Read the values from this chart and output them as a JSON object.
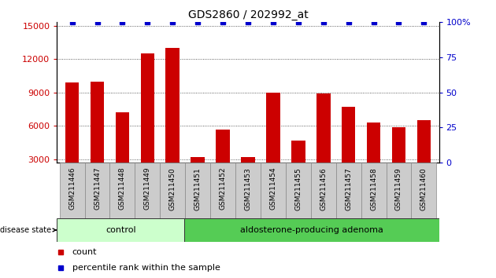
{
  "title": "GDS2860 / 202992_at",
  "categories": [
    "GSM211446",
    "GSM211447",
    "GSM211448",
    "GSM211449",
    "GSM211450",
    "GSM211451",
    "GSM211452",
    "GSM211453",
    "GSM211454",
    "GSM211455",
    "GSM211456",
    "GSM211457",
    "GSM211458",
    "GSM211459",
    "GSM211460"
  ],
  "counts": [
    9900,
    10000,
    7200,
    12500,
    13000,
    3200,
    5700,
    3200,
    9000,
    4700,
    8900,
    7700,
    6300,
    5900,
    6500
  ],
  "percentile_ranks": [
    100,
    100,
    100,
    100,
    100,
    100,
    100,
    100,
    100,
    100,
    100,
    100,
    100,
    100,
    100
  ],
  "bar_color": "#cc0000",
  "percentile_color": "#0000cc",
  "ylim_left": [
    2700,
    15300
  ],
  "ylim_right": [
    0,
    100
  ],
  "yticks_left": [
    3000,
    6000,
    9000,
    12000,
    15000
  ],
  "yticks_right": [
    0,
    25,
    50,
    75,
    100
  ],
  "control_samples": 5,
  "control_label": "control",
  "adenoma_label": "aldosterone-producing adenoma",
  "disease_state_label": "disease state",
  "control_color": "#ccffcc",
  "adenoma_color": "#55cc55",
  "tick_bg_color": "#cccccc",
  "legend_count_label": "count",
  "legend_percentile_label": "percentile rank within the sample",
  "grid_color": "#333333",
  "title_fontsize": 10,
  "tick_fontsize": 8,
  "bar_bottom": 2700
}
